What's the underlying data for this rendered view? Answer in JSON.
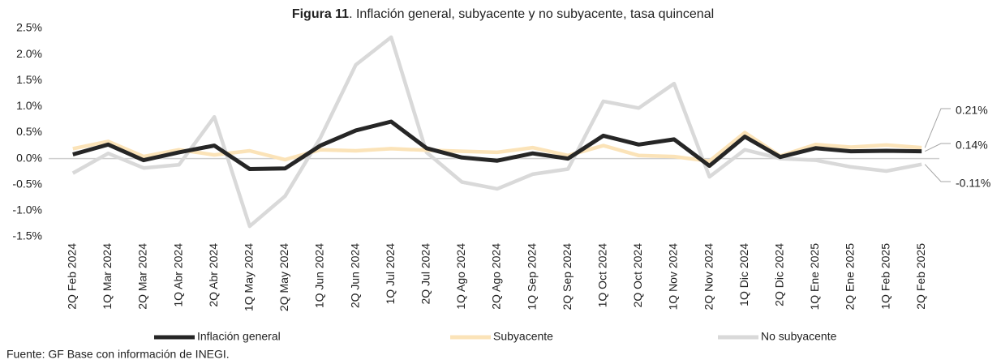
{
  "chart_data": {
    "type": "line",
    "title": [
      "Figura 11",
      ". Inflación general, subyacente y no subyacente, tasa quincenal"
    ],
    "categories": [
      "2Q Feb 2024",
      "1Q Mar 2024",
      "2Q Mar 2024",
      "1Q Abr 2024",
      "2Q Abr 2024",
      "1Q May 2024",
      "2Q May 2024",
      "1Q Jun 2024",
      "2Q Jun 2024",
      "1Q Jul 2024",
      "2Q Jul 2024",
      "1Q Ago 2024",
      "2Q Ago 2024",
      "1Q Sep 2024",
      "2Q Sep 2024",
      "1Q Oct 2024",
      "2Q Oct 2024",
      "1Q Nov 2024",
      "2Q Nov 2024",
      "1Q Dic 2024",
      "2Q Dic 2024",
      "1Q Ene 2025",
      "2Q Ene 2025",
      "1Q Feb 2025",
      "2Q Feb 2025"
    ],
    "series": [
      {
        "name": "Inflación general",
        "color": "#262626",
        "values": [
          0.08,
          0.27,
          -0.03,
          0.12,
          0.25,
          -0.2,
          -0.19,
          0.25,
          0.54,
          0.71,
          0.2,
          0.02,
          -0.04,
          0.1,
          0.0,
          0.44,
          0.27,
          0.37,
          -0.14,
          0.42,
          0.03,
          0.2,
          0.14,
          0.15,
          0.14
        ],
        "value_labels": [
          null,
          null,
          null,
          null,
          null,
          null,
          null,
          null,
          null,
          null,
          null,
          null,
          null,
          null,
          null,
          null,
          null,
          null,
          null,
          null,
          null,
          null,
          null,
          null,
          "0.14%"
        ]
      },
      {
        "name": "Subyacente",
        "color": "#fbe3b8",
        "values": [
          0.19,
          0.33,
          0.04,
          0.17,
          0.07,
          0.15,
          -0.02,
          0.17,
          0.15,
          0.19,
          0.16,
          0.14,
          0.12,
          0.21,
          0.06,
          0.25,
          0.06,
          0.04,
          -0.05,
          0.5,
          0.05,
          0.27,
          0.22,
          0.26,
          0.21
        ],
        "value_labels": [
          null,
          null,
          null,
          null,
          null,
          null,
          null,
          null,
          null,
          null,
          null,
          null,
          null,
          null,
          null,
          null,
          null,
          null,
          null,
          null,
          null,
          null,
          null,
          null,
          "0.21%"
        ]
      },
      {
        "name": "No subyacente",
        "color": "#d9d9d9",
        "values": [
          -0.28,
          0.1,
          -0.18,
          -0.12,
          0.8,
          -1.3,
          -0.72,
          0.4,
          1.8,
          2.33,
          0.12,
          -0.45,
          -0.58,
          -0.3,
          -0.2,
          1.1,
          0.97,
          1.44,
          -0.35,
          0.17,
          0.0,
          -0.03,
          -0.16,
          -0.24,
          -0.11
        ],
        "value_labels": [
          null,
          null,
          null,
          null,
          null,
          null,
          null,
          null,
          null,
          null,
          null,
          null,
          null,
          null,
          null,
          null,
          null,
          null,
          null,
          null,
          null,
          null,
          null,
          null,
          "-0.11%"
        ]
      }
    ],
    "ylim": [
      -1.5,
      2.5
    ],
    "yticks": [
      {
        "value": -1.5,
        "label": "-1.5%"
      },
      {
        "value": -1.0,
        "label": "-1.0%"
      },
      {
        "value": -0.5,
        "label": "-0.5%"
      },
      {
        "value": 0,
        "label": "0.0%"
      },
      {
        "value": 0.5,
        "label": "0.5%"
      },
      {
        "value": 1.0,
        "label": "1.0%"
      },
      {
        "value": 1.5,
        "label": "1.5%"
      },
      {
        "value": 2.0,
        "label": "2.0%"
      },
      {
        "value": 2.5,
        "label": "2.5%"
      }
    ],
    "grid": false,
    "legend": "bottom",
    "source": "Fuente: GF Base con información de INEGI."
  }
}
